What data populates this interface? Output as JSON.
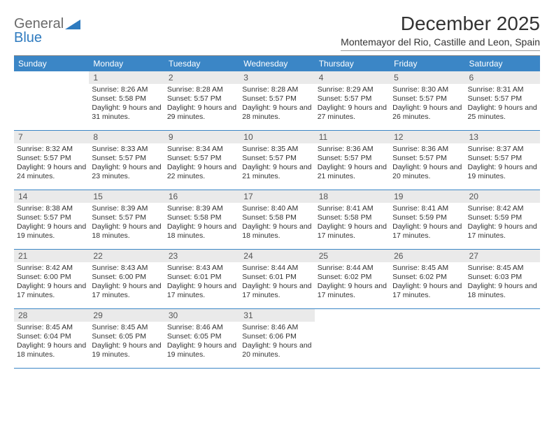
{
  "logo": {
    "part1": "General",
    "part2": "Blue"
  },
  "title": "December 2025",
  "subtitle": "Montemayor del Rio, Castille and Leon, Spain",
  "colors": {
    "header_bg": "#3b86c6",
    "header_text": "#ffffff",
    "daynum_bg": "#eaeaea",
    "daynum_text": "#555555",
    "body_text": "#333333",
    "week_border": "#3b86c6",
    "logo_gray": "#6a6a6a",
    "logo_blue": "#2f7bbf"
  },
  "daysOfWeek": [
    "Sunday",
    "Monday",
    "Tuesday",
    "Wednesday",
    "Thursday",
    "Friday",
    "Saturday"
  ],
  "weeks": [
    [
      {
        "num": "",
        "sunrise": "",
        "sunset": "",
        "daylight": ""
      },
      {
        "num": "1",
        "sunrise": "Sunrise: 8:26 AM",
        "sunset": "Sunset: 5:58 PM",
        "daylight": "Daylight: 9 hours and 31 minutes."
      },
      {
        "num": "2",
        "sunrise": "Sunrise: 8:28 AM",
        "sunset": "Sunset: 5:57 PM",
        "daylight": "Daylight: 9 hours and 29 minutes."
      },
      {
        "num": "3",
        "sunrise": "Sunrise: 8:28 AM",
        "sunset": "Sunset: 5:57 PM",
        "daylight": "Daylight: 9 hours and 28 minutes."
      },
      {
        "num": "4",
        "sunrise": "Sunrise: 8:29 AM",
        "sunset": "Sunset: 5:57 PM",
        "daylight": "Daylight: 9 hours and 27 minutes."
      },
      {
        "num": "5",
        "sunrise": "Sunrise: 8:30 AM",
        "sunset": "Sunset: 5:57 PM",
        "daylight": "Daylight: 9 hours and 26 minutes."
      },
      {
        "num": "6",
        "sunrise": "Sunrise: 8:31 AM",
        "sunset": "Sunset: 5:57 PM",
        "daylight": "Daylight: 9 hours and 25 minutes."
      }
    ],
    [
      {
        "num": "7",
        "sunrise": "Sunrise: 8:32 AM",
        "sunset": "Sunset: 5:57 PM",
        "daylight": "Daylight: 9 hours and 24 minutes."
      },
      {
        "num": "8",
        "sunrise": "Sunrise: 8:33 AM",
        "sunset": "Sunset: 5:57 PM",
        "daylight": "Daylight: 9 hours and 23 minutes."
      },
      {
        "num": "9",
        "sunrise": "Sunrise: 8:34 AM",
        "sunset": "Sunset: 5:57 PM",
        "daylight": "Daylight: 9 hours and 22 minutes."
      },
      {
        "num": "10",
        "sunrise": "Sunrise: 8:35 AM",
        "sunset": "Sunset: 5:57 PM",
        "daylight": "Daylight: 9 hours and 21 minutes."
      },
      {
        "num": "11",
        "sunrise": "Sunrise: 8:36 AM",
        "sunset": "Sunset: 5:57 PM",
        "daylight": "Daylight: 9 hours and 21 minutes."
      },
      {
        "num": "12",
        "sunrise": "Sunrise: 8:36 AM",
        "sunset": "Sunset: 5:57 PM",
        "daylight": "Daylight: 9 hours and 20 minutes."
      },
      {
        "num": "13",
        "sunrise": "Sunrise: 8:37 AM",
        "sunset": "Sunset: 5:57 PM",
        "daylight": "Daylight: 9 hours and 19 minutes."
      }
    ],
    [
      {
        "num": "14",
        "sunrise": "Sunrise: 8:38 AM",
        "sunset": "Sunset: 5:57 PM",
        "daylight": "Daylight: 9 hours and 19 minutes."
      },
      {
        "num": "15",
        "sunrise": "Sunrise: 8:39 AM",
        "sunset": "Sunset: 5:57 PM",
        "daylight": "Daylight: 9 hours and 18 minutes."
      },
      {
        "num": "16",
        "sunrise": "Sunrise: 8:39 AM",
        "sunset": "Sunset: 5:58 PM",
        "daylight": "Daylight: 9 hours and 18 minutes."
      },
      {
        "num": "17",
        "sunrise": "Sunrise: 8:40 AM",
        "sunset": "Sunset: 5:58 PM",
        "daylight": "Daylight: 9 hours and 18 minutes."
      },
      {
        "num": "18",
        "sunrise": "Sunrise: 8:41 AM",
        "sunset": "Sunset: 5:58 PM",
        "daylight": "Daylight: 9 hours and 17 minutes."
      },
      {
        "num": "19",
        "sunrise": "Sunrise: 8:41 AM",
        "sunset": "Sunset: 5:59 PM",
        "daylight": "Daylight: 9 hours and 17 minutes."
      },
      {
        "num": "20",
        "sunrise": "Sunrise: 8:42 AM",
        "sunset": "Sunset: 5:59 PM",
        "daylight": "Daylight: 9 hours and 17 minutes."
      }
    ],
    [
      {
        "num": "21",
        "sunrise": "Sunrise: 8:42 AM",
        "sunset": "Sunset: 6:00 PM",
        "daylight": "Daylight: 9 hours and 17 minutes."
      },
      {
        "num": "22",
        "sunrise": "Sunrise: 8:43 AM",
        "sunset": "Sunset: 6:00 PM",
        "daylight": "Daylight: 9 hours and 17 minutes."
      },
      {
        "num": "23",
        "sunrise": "Sunrise: 8:43 AM",
        "sunset": "Sunset: 6:01 PM",
        "daylight": "Daylight: 9 hours and 17 minutes."
      },
      {
        "num": "24",
        "sunrise": "Sunrise: 8:44 AM",
        "sunset": "Sunset: 6:01 PM",
        "daylight": "Daylight: 9 hours and 17 minutes."
      },
      {
        "num": "25",
        "sunrise": "Sunrise: 8:44 AM",
        "sunset": "Sunset: 6:02 PM",
        "daylight": "Daylight: 9 hours and 17 minutes."
      },
      {
        "num": "26",
        "sunrise": "Sunrise: 8:45 AM",
        "sunset": "Sunset: 6:02 PM",
        "daylight": "Daylight: 9 hours and 17 minutes."
      },
      {
        "num": "27",
        "sunrise": "Sunrise: 8:45 AM",
        "sunset": "Sunset: 6:03 PM",
        "daylight": "Daylight: 9 hours and 18 minutes."
      }
    ],
    [
      {
        "num": "28",
        "sunrise": "Sunrise: 8:45 AM",
        "sunset": "Sunset: 6:04 PM",
        "daylight": "Daylight: 9 hours and 18 minutes."
      },
      {
        "num": "29",
        "sunrise": "Sunrise: 8:45 AM",
        "sunset": "Sunset: 6:05 PM",
        "daylight": "Daylight: 9 hours and 19 minutes."
      },
      {
        "num": "30",
        "sunrise": "Sunrise: 8:46 AM",
        "sunset": "Sunset: 6:05 PM",
        "daylight": "Daylight: 9 hours and 19 minutes."
      },
      {
        "num": "31",
        "sunrise": "Sunrise: 8:46 AM",
        "sunset": "Sunset: 6:06 PM",
        "daylight": "Daylight: 9 hours and 20 minutes."
      },
      {
        "num": "",
        "sunrise": "",
        "sunset": "",
        "daylight": ""
      },
      {
        "num": "",
        "sunrise": "",
        "sunset": "",
        "daylight": ""
      },
      {
        "num": "",
        "sunrise": "",
        "sunset": "",
        "daylight": ""
      }
    ]
  ]
}
